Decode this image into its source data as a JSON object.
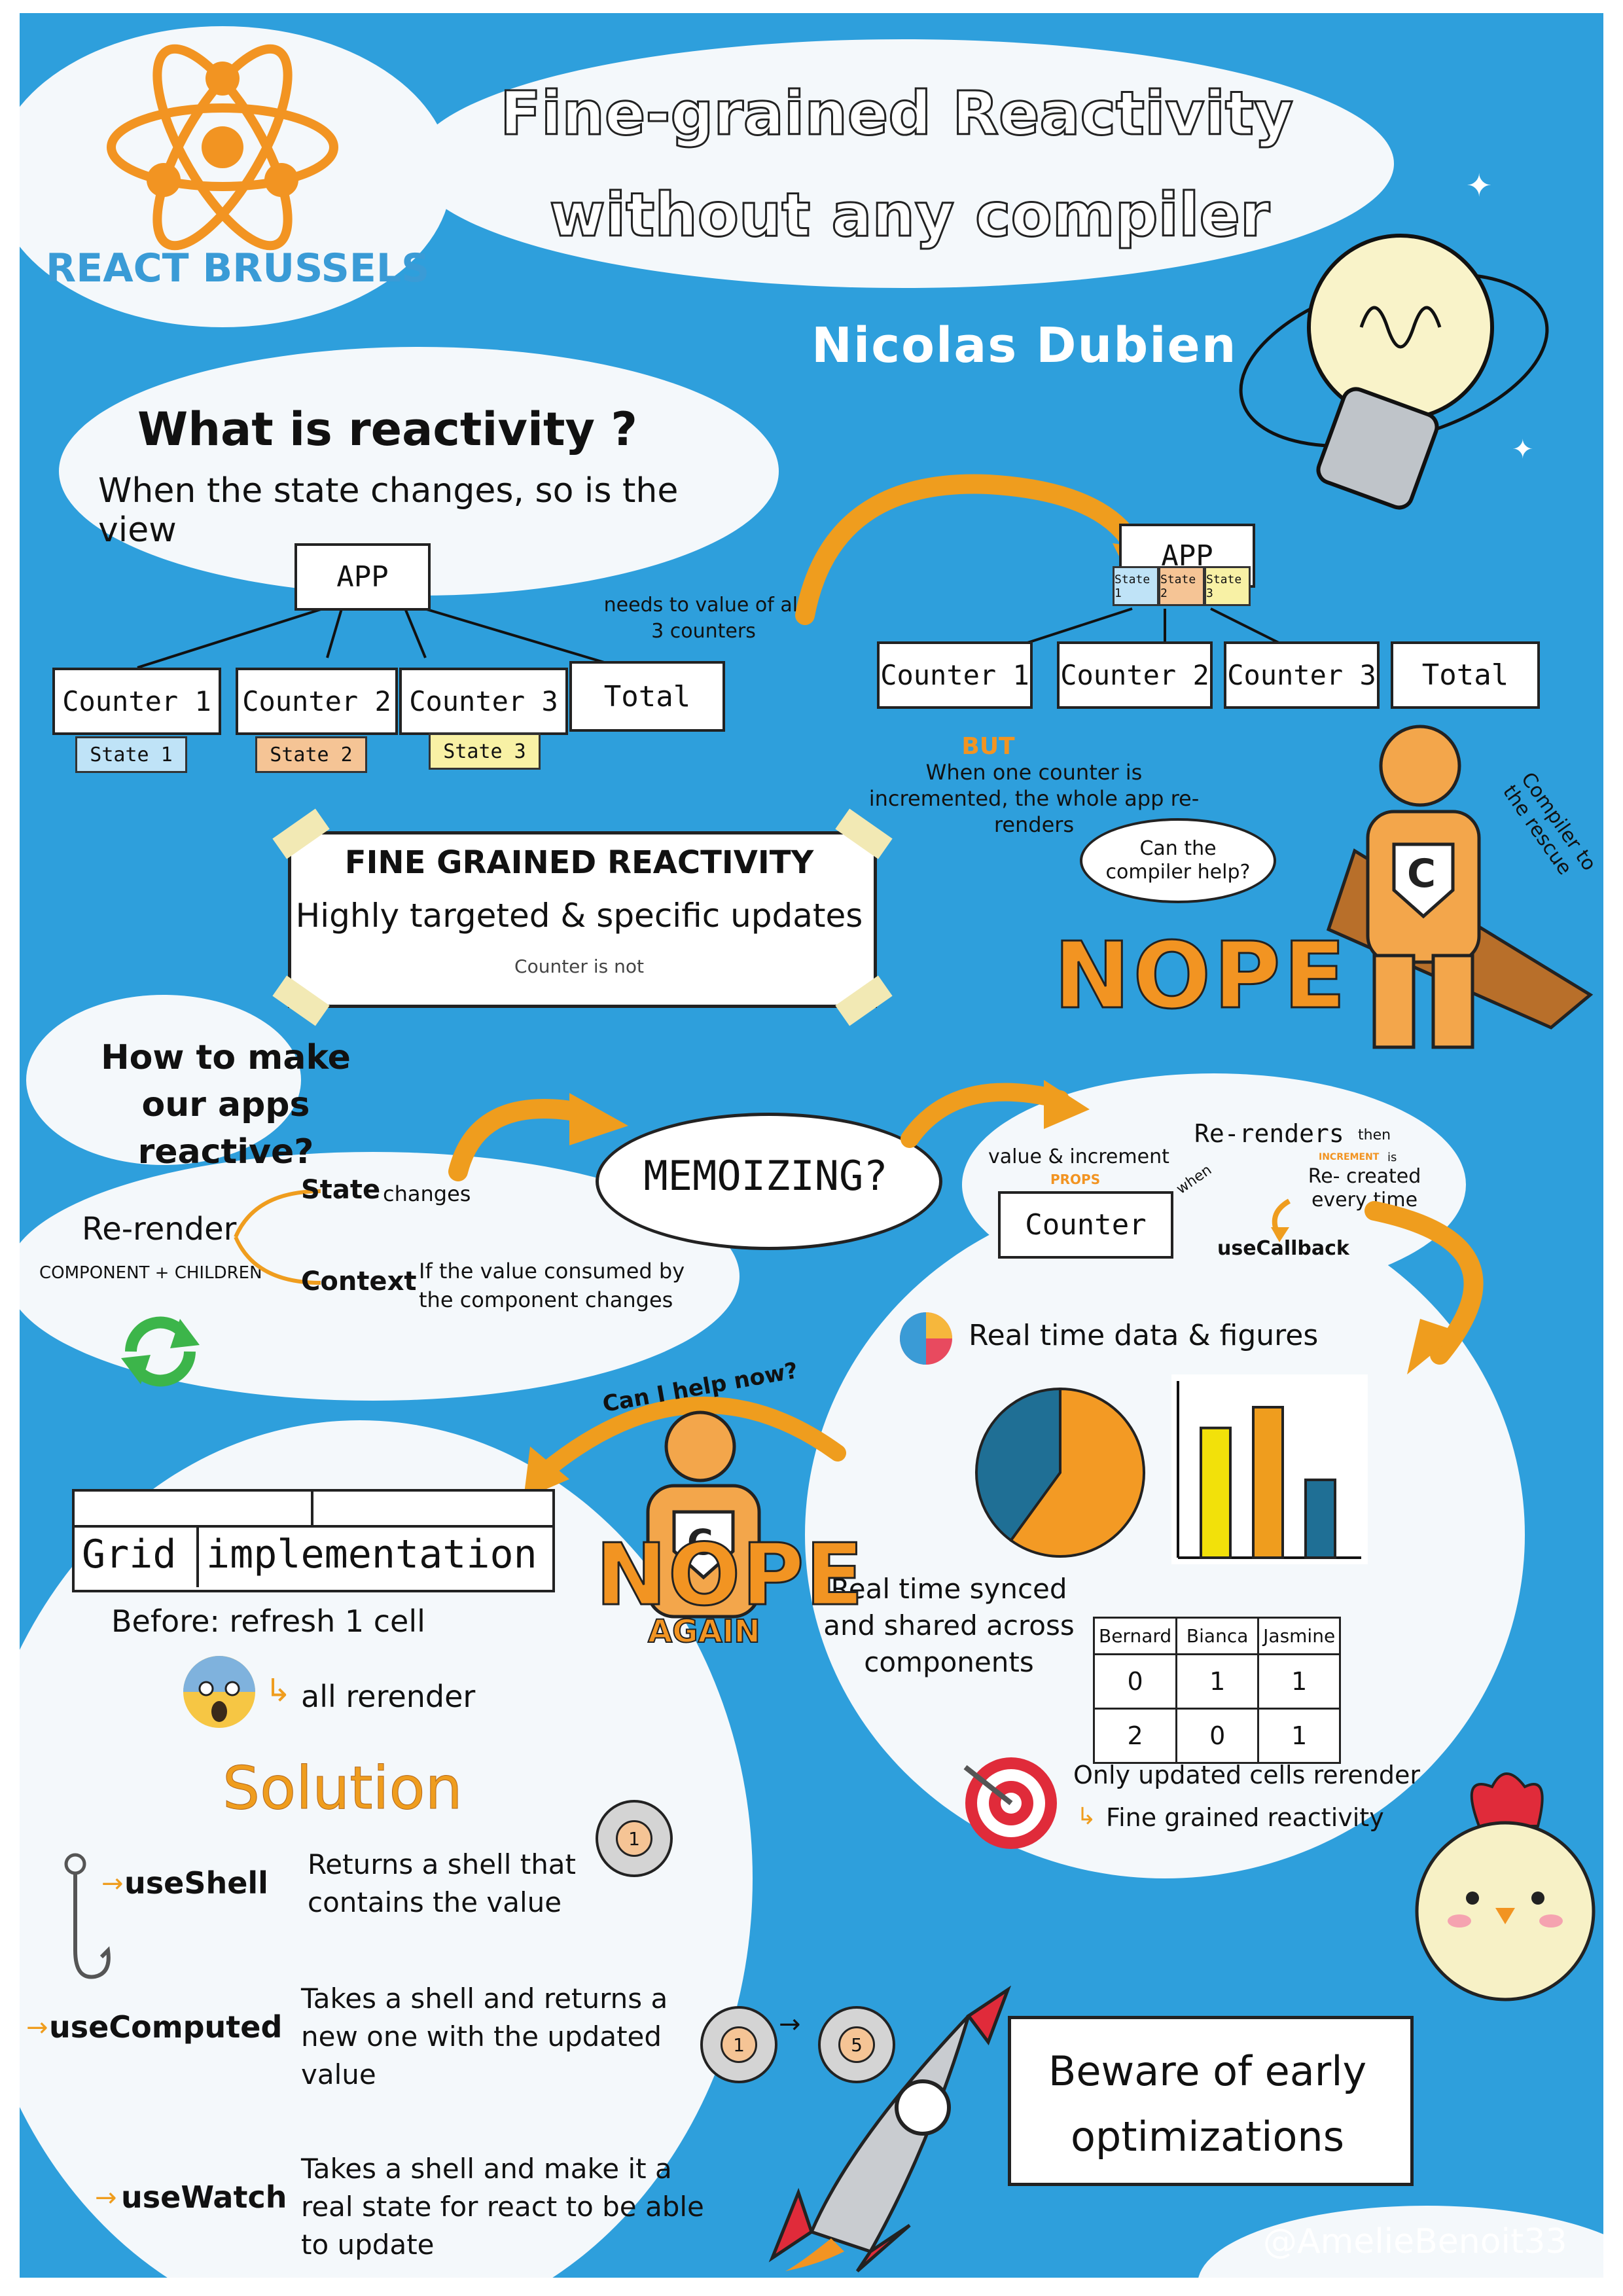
{
  "header": {
    "logo_text": "REACT BRUSSELS",
    "title_line1": "Fine-grained Reactivity",
    "title_line2": "without any compiler",
    "speaker": "Nicolas Dubien"
  },
  "reactivity": {
    "heading": "What is reactivity ?",
    "definition": "When the state changes, so is the view",
    "tree1": {
      "root": "APP",
      "nodes": [
        "Counter 1",
        "Counter 2",
        "Counter 3",
        "Total"
      ],
      "states": [
        "State 1",
        "State 2",
        "State 3"
      ]
    },
    "note": "needs to value of all 3 counters",
    "tree2": {
      "root": "APP",
      "states": [
        "State 1",
        "State 2",
        "State 3"
      ],
      "nodes": [
        "Counter 1",
        "Counter 2",
        "Counter 3",
        "Total"
      ]
    },
    "but_label": "BUT",
    "but_text": "When one counter is incremented, the whole app re-renders",
    "question": "Can the compiler help?",
    "hero_label": "Compiler to the rescue",
    "nope": "NOPE"
  },
  "fine_grained": {
    "title": "FINE GRAINED REACTIVITY",
    "subtitle": "Highly targeted & specific updates",
    "note": "Counter is not"
  },
  "howto": {
    "question": "How to make our apps reactive?",
    "rerender": "Re-render",
    "component_children": "COMPONENT + CHILDREN",
    "state": "State",
    "state_suffix": "changes",
    "context": "Context",
    "context_text": "If the value consumed by the component changes"
  },
  "memo": {
    "label": "MEMOIZING?",
    "props_text": "value & increment",
    "props_tag": "PROPS",
    "counter": "Counter",
    "when": "when",
    "rerenders": "Re-renders",
    "then": "then",
    "increment_tag": "INCREMENT",
    "is": "is",
    "recreated": "Re- created every time",
    "usecallback": "useCallback"
  },
  "realtime": {
    "title": "Real time data & figures",
    "synced": "Real time synced and shared across components",
    "only_updated": "Only updated cells rerender",
    "fine_grained": "Fine grained reactivity",
    "table": {
      "headers": [
        "Bernard",
        "Bianca",
        "Jasmine"
      ],
      "rows": [
        [
          "0",
          "1",
          "1"
        ],
        [
          "2",
          "0",
          "1"
        ]
      ]
    }
  },
  "chart_data": [
    {
      "type": "pie",
      "values": [
        40,
        60
      ],
      "colors": [
        "#1f6f95",
        "#f39a24"
      ]
    },
    {
      "type": "bar",
      "values": [
        5,
        5.8,
        3
      ],
      "colors": [
        "#f2e10a",
        "#ef9d1e",
        "#1f6f95"
      ]
    }
  ],
  "grid": {
    "question": "Can I help now?",
    "nope": "NOPE",
    "again": "AGAIN",
    "title_left": "Grid",
    "title_right": "implementation",
    "before": "Before: refresh 1 cell",
    "all_rerender": "all rerender",
    "solution": "Solution"
  },
  "hooks": [
    {
      "name": "useShell",
      "desc": "Returns a shell that contains the value"
    },
    {
      "name": "useComputed",
      "desc": "Takes a shell and returns a new one with the updated value"
    },
    {
      "name": "useWatch",
      "desc": "Takes a shell and make it a real state for react to be able to update"
    }
  ],
  "shells": {
    "one": "1",
    "five": "5"
  },
  "beware": "Beware of early optimizations",
  "credit": "@AmelieBenoit33"
}
